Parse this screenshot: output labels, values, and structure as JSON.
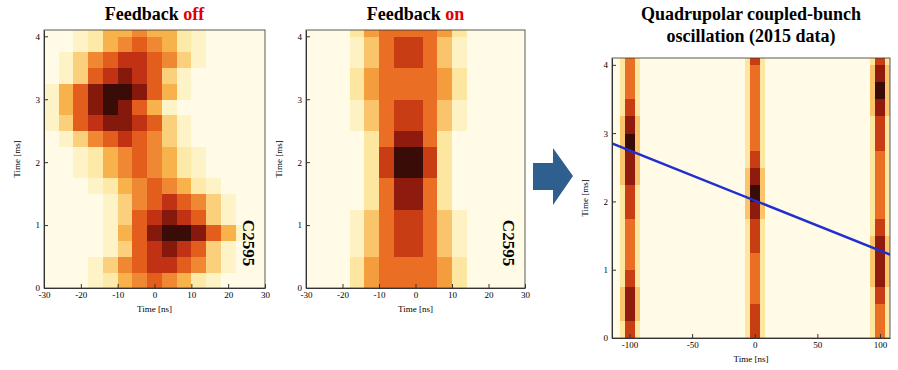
{
  "chart_data": [
    {
      "type": "heatmap",
      "title": "Feedback off",
      "xlabel": "Time [ns]",
      "ylabel": "Time [ms]",
      "xlim": [
        -30,
        30
      ],
      "ylim": [
        0,
        4.1
      ],
      "xticks": [
        -30,
        -20,
        -10,
        0,
        10,
        20,
        30
      ],
      "yticks": [
        0,
        1,
        2,
        3,
        4
      ],
      "annotation": "C2595",
      "x": [
        -30,
        -26,
        -22,
        -18,
        -14,
        -10,
        -6,
        -2,
        2,
        6,
        10,
        14,
        18,
        22,
        26,
        30
      ],
      "y": [
        0,
        0.25,
        0.5,
        0.75,
        1,
        1.25,
        1.5,
        1.75,
        2,
        2.25,
        2.5,
        2.75,
        3,
        3.25,
        3.5,
        3.75,
        4,
        4.1
      ],
      "z": [
        [
          0,
          0,
          0,
          1,
          2,
          4,
          5,
          6,
          5,
          4,
          2,
          1,
          0,
          0,
          0
        ],
        [
          0,
          0,
          0,
          1,
          3,
          5,
          6,
          7,
          7,
          6,
          5,
          3,
          1,
          0,
          0
        ],
        [
          0,
          0,
          0,
          0,
          1,
          3,
          6,
          7,
          8,
          7,
          6,
          3,
          1,
          0,
          0
        ],
        [
          0,
          0,
          0,
          0,
          1,
          4,
          6,
          8,
          9,
          9,
          8,
          6,
          4,
          1,
          0
        ],
        [
          0,
          0,
          0,
          0,
          1,
          3,
          6,
          7,
          8,
          7,
          6,
          3,
          1,
          0,
          0
        ],
        [
          0,
          0,
          0,
          0,
          1,
          3,
          5,
          6,
          7,
          6,
          5,
          3,
          1,
          0,
          0
        ],
        [
          0,
          0,
          0,
          1,
          2,
          4,
          5,
          6,
          5,
          4,
          2,
          1,
          0,
          0,
          0
        ],
        [
          0,
          0,
          1,
          2,
          4,
          5,
          6,
          5,
          4,
          2,
          1,
          0,
          0,
          0,
          0
        ],
        [
          0,
          0,
          1,
          2,
          4,
          5,
          6,
          5,
          4,
          2,
          1,
          0,
          0,
          0,
          0
        ],
        [
          0,
          1,
          3,
          5,
          6,
          7,
          6,
          5,
          3,
          1,
          0,
          0,
          0,
          0,
          0
        ],
        [
          1,
          3,
          6,
          7,
          8,
          8,
          7,
          6,
          3,
          1,
          0,
          0,
          0,
          0,
          0
        ],
        [
          1,
          4,
          6,
          8,
          9,
          8,
          6,
          4,
          1,
          0,
          0,
          0,
          0,
          0,
          0
        ],
        [
          1,
          4,
          6,
          8,
          9,
          9,
          8,
          6,
          4,
          1,
          0,
          0,
          0,
          0,
          0
        ],
        [
          0,
          1,
          3,
          6,
          7,
          8,
          7,
          6,
          3,
          1,
          0,
          0,
          0,
          0,
          0
        ],
        [
          0,
          1,
          3,
          5,
          6,
          7,
          7,
          6,
          5,
          3,
          1,
          0,
          0,
          0,
          0
        ],
        [
          0,
          0,
          1,
          2,
          4,
          5,
          6,
          5,
          4,
          2,
          1,
          0,
          0,
          0,
          0
        ],
        [
          0,
          0,
          1,
          2,
          4,
          4,
          5,
          4,
          4,
          2,
          1,
          0,
          0,
          0,
          0
        ]
      ]
    },
    {
      "type": "heatmap",
      "title": "Feedback on",
      "xlabel": "Time [ns]",
      "ylabel": "Time [ms]",
      "xlim": [
        -30,
        30
      ],
      "ylim": [
        0,
        4.1
      ],
      "xticks": [
        -30,
        -20,
        -10,
        0,
        10,
        20,
        30
      ],
      "yticks": [
        0,
        1,
        2,
        3,
        4
      ],
      "annotation": "C2595",
      "x": [
        -30,
        -26,
        -22,
        -18,
        -14,
        -10,
        -6,
        -2,
        2,
        6,
        10,
        14,
        18,
        22,
        26,
        30
      ],
      "y": [
        0,
        0.25,
        0.5,
        0.75,
        1,
        1.25,
        1.5,
        1.75,
        2,
        2.25,
        2.5,
        2.75,
        3,
        3.25,
        3.5,
        3.75,
        4,
        4.1
      ],
      "z": [
        [
          0,
          0,
          0,
          2,
          4,
          5,
          5,
          5,
          5,
          4,
          2,
          0,
          0,
          0,
          0
        ],
        [
          0,
          0,
          0,
          2,
          4,
          5,
          5,
          5,
          5,
          4,
          2,
          0,
          0,
          0,
          0
        ],
        [
          0,
          0,
          0,
          1,
          3,
          5,
          6,
          6,
          5,
          3,
          1,
          0,
          0,
          0,
          0
        ],
        [
          0,
          0,
          0,
          1,
          3,
          5,
          6,
          6,
          5,
          3,
          1,
          0,
          0,
          0,
          0
        ],
        [
          0,
          0,
          0,
          1,
          3,
          5,
          6,
          6,
          5,
          3,
          1,
          0,
          0,
          0,
          0
        ],
        [
          0,
          0,
          0,
          0,
          2,
          5,
          7,
          7,
          5,
          2,
          0,
          0,
          0,
          0,
          0
        ],
        [
          0,
          0,
          0,
          0,
          2,
          5,
          7,
          7,
          5,
          2,
          0,
          0,
          0,
          0,
          0
        ],
        [
          0,
          0,
          0,
          0,
          2,
          6,
          8,
          8,
          6,
          2,
          0,
          0,
          0,
          0,
          0
        ],
        [
          0,
          0,
          0,
          0,
          2,
          6,
          8,
          8,
          6,
          2,
          0,
          0,
          0,
          0,
          0
        ],
        [
          0,
          0,
          0,
          0,
          2,
          5,
          7,
          7,
          5,
          2,
          0,
          0,
          0,
          0,
          0
        ],
        [
          0,
          0,
          0,
          1,
          3,
          5,
          6,
          6,
          5,
          3,
          1,
          0,
          0,
          0,
          0
        ],
        [
          0,
          0,
          0,
          1,
          3,
          5,
          6,
          6,
          5,
          3,
          1,
          0,
          0,
          0,
          0
        ],
        [
          0,
          0,
          0,
          2,
          4,
          5,
          5,
          5,
          5,
          4,
          2,
          0,
          0,
          0,
          0
        ],
        [
          0,
          0,
          0,
          2,
          4,
          5,
          5,
          5,
          5,
          4,
          2,
          0,
          0,
          0,
          0
        ],
        [
          0,
          0,
          0,
          1,
          3,
          5,
          6,
          6,
          5,
          3,
          1,
          0,
          0,
          0,
          0
        ],
        [
          0,
          0,
          0,
          1,
          3,
          5,
          6,
          6,
          5,
          3,
          1,
          0,
          0,
          0,
          0
        ],
        [
          0,
          0,
          0,
          2,
          4,
          5,
          5,
          5,
          5,
          4,
          2,
          0,
          0,
          0,
          0
        ]
      ]
    },
    {
      "type": "heatmap",
      "title": "Quadrupolar coupled-bunch oscillation (2015 data)",
      "xlabel": "Time [ns]",
      "ylabel": "Time [ms]",
      "xlim": [
        -114,
        108
      ],
      "ylim": [
        0,
        4.1
      ],
      "xticks": [
        -100,
        -50,
        0,
        50,
        100
      ],
      "yticks": [
        0,
        1,
        2,
        3,
        4
      ],
      "trend_line": {
        "x": [
          -114,
          108
        ],
        "y": [
          2.85,
          1.22
        ],
        "color": "#1f2fd0"
      },
      "x": [
        -114,
        -108,
        -104,
        -100,
        -96,
        -92,
        -8,
        -4,
        0,
        4,
        8,
        92,
        96,
        100,
        104,
        108
      ],
      "y": [
        0,
        0.25,
        0.5,
        0.75,
        1,
        1.25,
        1.5,
        1.75,
        2,
        2.25,
        2.5,
        2.75,
        3,
        3.25,
        3.5,
        3.75,
        4,
        4.1
      ],
      "z": [
        [
          0,
          2,
          6,
          6,
          2,
          0,
          2,
          6,
          6,
          2,
          0,
          2,
          5,
          5,
          2
        ],
        [
          0,
          3,
          7,
          7,
          3,
          0,
          2,
          6,
          6,
          2,
          0,
          2,
          5,
          5,
          2
        ],
        [
          0,
          3,
          7,
          7,
          3,
          0,
          2,
          5,
          5,
          2,
          0,
          2,
          6,
          6,
          2
        ],
        [
          0,
          2,
          6,
          6,
          2,
          0,
          2,
          5,
          5,
          2,
          0,
          3,
          7,
          7,
          3
        ],
        [
          0,
          2,
          5,
          5,
          2,
          0,
          2,
          5,
          5,
          2,
          0,
          3,
          7,
          7,
          3
        ],
        [
          0,
          2,
          5,
          5,
          2,
          0,
          2,
          6,
          6,
          2,
          0,
          3,
          7,
          7,
          3
        ],
        [
          0,
          2,
          5,
          5,
          2,
          0,
          2,
          6,
          6,
          2,
          0,
          2,
          6,
          6,
          2
        ],
        [
          0,
          2,
          6,
          6,
          2,
          0,
          3,
          7,
          7,
          3,
          0,
          2,
          5,
          5,
          2
        ],
        [
          0,
          2,
          6,
          6,
          2,
          0,
          3,
          8,
          8,
          3,
          0,
          2,
          5,
          5,
          2
        ],
        [
          0,
          3,
          7,
          7,
          3,
          0,
          3,
          7,
          7,
          3,
          0,
          2,
          5,
          5,
          2
        ],
        [
          0,
          3,
          7,
          7,
          3,
          0,
          2,
          6,
          6,
          2,
          0,
          2,
          5,
          5,
          2
        ],
        [
          0,
          3,
          8,
          8,
          3,
          0,
          2,
          5,
          5,
          2,
          0,
          2,
          6,
          6,
          2
        ],
        [
          0,
          3,
          7,
          7,
          3,
          0,
          2,
          5,
          5,
          2,
          0,
          2,
          6,
          6,
          2
        ],
        [
          0,
          2,
          6,
          6,
          2,
          0,
          2,
          5,
          5,
          2,
          0,
          3,
          7,
          7,
          3
        ],
        [
          0,
          2,
          5,
          5,
          2,
          0,
          2,
          5,
          5,
          2,
          0,
          3,
          8,
          8,
          3
        ],
        [
          0,
          2,
          5,
          5,
          2,
          0,
          2,
          5,
          5,
          2,
          0,
          3,
          7,
          7,
          3
        ],
        [
          0,
          2,
          5,
          5,
          2,
          0,
          2,
          6,
          6,
          2,
          0,
          2,
          6,
          6,
          2
        ]
      ]
    }
  ]
}
